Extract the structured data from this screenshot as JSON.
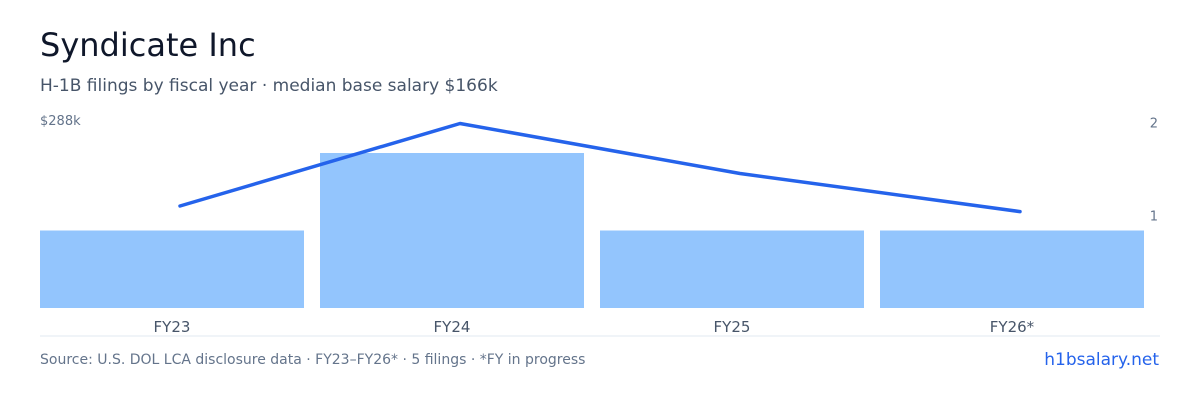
{
  "header": {
    "title": "Syndicate Inc",
    "subtitle": "H-1B filings by fiscal year · median base salary $166k"
  },
  "footer": {
    "source": "Source: U.S. DOL LCA disclosure data · FY23–FY26* · 5 filings · *FY in progress",
    "site": "h1bsalary.net"
  },
  "colors": {
    "bar": "#93c5fd",
    "line": "#2563eb",
    "axis": "#e2e8f0",
    "link": "#2563eb"
  },
  "chart_data": {
    "type": "bar",
    "categories": [
      "FY23",
      "FY24",
      "FY25",
      "FY26*"
    ],
    "series": [
      {
        "type": "bar",
        "axis": "left",
        "values": [
          1,
          2,
          1,
          1
        ]
      },
      {
        "type": "line",
        "axis": "right",
        "values": [
          1.1,
          1.99,
          1.45,
          1.04
        ]
      }
    ],
    "left_axis": {
      "max": 288,
      "tick_label": "$288k",
      "unit": "k$"
    },
    "right_axis": {
      "ylim": [
        0,
        2.2
      ],
      "ticks": [
        1,
        2
      ],
      "tick_labels": [
        "1",
        "2"
      ]
    },
    "bar_ylim": [
      0,
      2
    ],
    "grid": false,
    "legend": "none"
  }
}
